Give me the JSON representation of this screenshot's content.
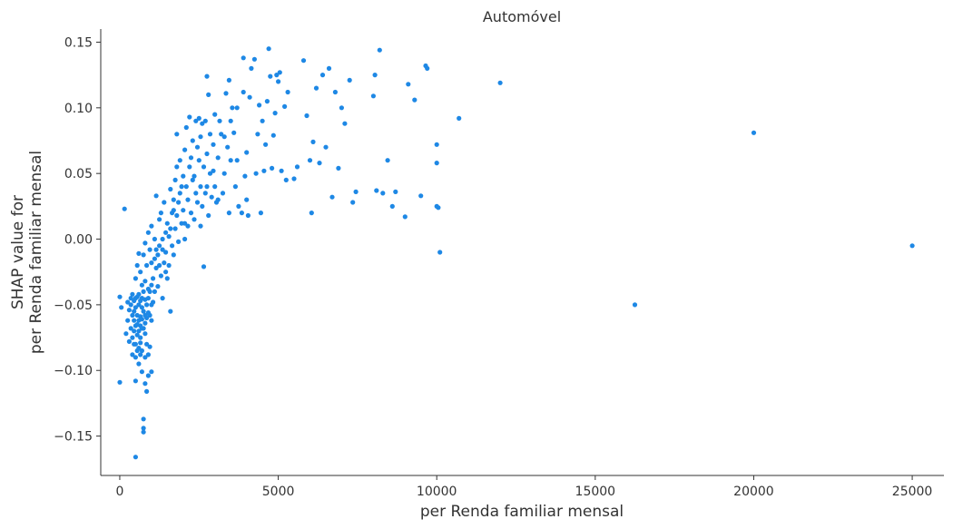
{
  "chart_data": {
    "type": "scatter",
    "title": "Automóvel",
    "xlabel": "per Renda familiar mensal",
    "ylabel_lines": [
      "SHAP value for",
      "per Renda familiar mensal"
    ],
    "xlim": [
      -600,
      26000
    ],
    "ylim": [
      -0.18,
      0.16
    ],
    "xticks": [
      0,
      5000,
      10000,
      15000,
      20000,
      25000
    ],
    "xtick_labels": [
      "0",
      "5000",
      "10000",
      "15000",
      "20000",
      "25000"
    ],
    "yticks": [
      -0.15,
      -0.1,
      -0.05,
      0.0,
      0.05,
      0.1,
      0.15
    ],
    "ytick_labels": [
      "−0.15",
      "−0.10",
      "−0.05",
      "0.00",
      "0.05",
      "0.10",
      "0.15"
    ],
    "grid": false,
    "point_color": "#1e88e5",
    "points": [
      [
        0,
        -0.044
      ],
      [
        0,
        -0.109
      ],
      [
        50,
        -0.052
      ],
      [
        150,
        0.023
      ],
      [
        200,
        -0.072
      ],
      [
        250,
        -0.048
      ],
      [
        250,
        -0.062
      ],
      [
        300,
        -0.078
      ],
      [
        300,
        -0.054
      ],
      [
        350,
        -0.045
      ],
      [
        350,
        -0.068
      ],
      [
        400,
        -0.058
      ],
      [
        400,
        -0.075
      ],
      [
        400,
        -0.088
      ],
      [
        450,
        -0.047
      ],
      [
        450,
        -0.062
      ],
      [
        450,
        -0.07
      ],
      [
        500,
        -0.166
      ],
      [
        500,
        -0.052
      ],
      [
        500,
        -0.066
      ],
      [
        500,
        -0.08
      ],
      [
        500,
        -0.09
      ],
      [
        500,
        -0.108
      ],
      [
        550,
        -0.044
      ],
      [
        550,
        -0.058
      ],
      [
        550,
        -0.073
      ],
      [
        550,
        -0.085
      ],
      [
        600,
        -0.05
      ],
      [
        600,
        -0.062
      ],
      [
        600,
        -0.07
      ],
      [
        600,
        -0.095
      ],
      [
        650,
        -0.047
      ],
      [
        650,
        -0.059
      ],
      [
        650,
        -0.066
      ],
      [
        650,
        -0.079
      ],
      [
        700,
        -0.052
      ],
      [
        700,
        -0.061
      ],
      [
        700,
        -0.085
      ],
      [
        700,
        -0.101
      ],
      [
        750,
        -0.137
      ],
      [
        750,
        -0.144
      ],
      [
        750,
        -0.147
      ],
      [
        750,
        -0.055
      ],
      [
        750,
        -0.068
      ],
      [
        800,
        -0.046
      ],
      [
        800,
        -0.058
      ],
      [
        800,
        -0.064
      ],
      [
        800,
        -0.09
      ],
      [
        800,
        -0.11
      ],
      [
        850,
        -0.116
      ],
      [
        850,
        -0.08
      ],
      [
        850,
        -0.05
      ],
      [
        900,
        -0.056
      ],
      [
        900,
        -0.045
      ],
      [
        900,
        -0.088
      ],
      [
        900,
        -0.104
      ],
      [
        950,
        -0.04
      ],
      [
        950,
        -0.082
      ],
      [
        1000,
        -0.05
      ],
      [
        1000,
        -0.062
      ],
      [
        1000,
        -0.101
      ],
      [
        500,
        -0.03
      ],
      [
        550,
        -0.02
      ],
      [
        600,
        -0.011
      ],
      [
        650,
        -0.025
      ],
      [
        700,
        -0.035
      ],
      [
        750,
        -0.012
      ],
      [
        800,
        -0.003
      ],
      [
        850,
        -0.02
      ],
      [
        900,
        0.005
      ],
      [
        950,
        -0.008
      ],
      [
        1000,
        -0.018
      ],
      [
        1000,
        0.01
      ],
      [
        1050,
        -0.03
      ],
      [
        1100,
        -0.04
      ],
      [
        1100,
        0.0
      ],
      [
        1100,
        -0.015
      ],
      [
        1150,
        0.033
      ],
      [
        1150,
        -0.022
      ],
      [
        1200,
        -0.012
      ],
      [
        1200,
        -0.036
      ],
      [
        1250,
        0.015
      ],
      [
        1250,
        -0.005
      ],
      [
        1300,
        -0.028
      ],
      [
        1300,
        0.02
      ],
      [
        1350,
        0.0
      ],
      [
        1350,
        -0.045
      ],
      [
        1400,
        -0.018
      ],
      [
        1400,
        0.028
      ],
      [
        1450,
        0.005
      ],
      [
        1450,
        -0.01
      ],
      [
        1500,
        -0.03
      ],
      [
        1500,
        0.012
      ],
      [
        1550,
        0.002
      ],
      [
        1550,
        -0.02
      ],
      [
        1600,
        0.038
      ],
      [
        1600,
        -0.055
      ],
      [
        1650,
        0.02
      ],
      [
        1650,
        -0.005
      ],
      [
        1700,
        0.03
      ],
      [
        1700,
        -0.012
      ],
      [
        1750,
        0.045
      ],
      [
        1750,
        0.008
      ],
      [
        1800,
        0.08
      ],
      [
        1800,
        0.018
      ],
      [
        1800,
        0.055
      ],
      [
        1850,
        -0.002
      ],
      [
        1900,
        0.035
      ],
      [
        1900,
        0.06
      ],
      [
        1950,
        0.012
      ],
      [
        2000,
        0.048
      ],
      [
        2000,
        0.022
      ],
      [
        2050,
        0.068
      ],
      [
        2050,
        0.0
      ],
      [
        2100,
        0.04
      ],
      [
        2100,
        0.085
      ],
      [
        2150,
        0.03
      ],
      [
        2150,
        0.01
      ],
      [
        2200,
        0.093
      ],
      [
        2200,
        0.055
      ],
      [
        2250,
        0.02
      ],
      [
        2300,
        0.075
      ],
      [
        2300,
        0.045
      ],
      [
        2350,
        0.015
      ],
      [
        2400,
        0.09
      ],
      [
        2400,
        0.035
      ],
      [
        2450,
        0.07
      ],
      [
        2450,
        0.028
      ],
      [
        2500,
        0.092
      ],
      [
        2500,
        0.06
      ],
      [
        2550,
        0.078
      ],
      [
        2550,
        0.04
      ],
      [
        2600,
        0.088
      ],
      [
        2600,
        0.025
      ],
      [
        2650,
        0.055
      ],
      [
        2650,
        -0.021
      ],
      [
        2700,
        0.09
      ],
      [
        2700,
        0.035
      ],
      [
        2750,
        0.124
      ],
      [
        2750,
        0.065
      ],
      [
        2800,
        0.11
      ],
      [
        2800,
        0.018
      ],
      [
        2850,
        0.08
      ],
      [
        2850,
        0.05
      ],
      [
        2900,
        0.032
      ],
      [
        2950,
        0.072
      ],
      [
        3000,
        0.095
      ],
      [
        3000,
        0.04
      ],
      [
        3050,
        0.028
      ],
      [
        3100,
        0.062
      ],
      [
        3150,
        0.09
      ],
      [
        3200,
        0.08
      ],
      [
        3250,
        0.035
      ],
      [
        3300,
        0.05
      ],
      [
        3350,
        0.111
      ],
      [
        3400,
        0.07
      ],
      [
        3450,
        0.121
      ],
      [
        3450,
        0.02
      ],
      [
        3500,
        0.09
      ],
      [
        3550,
        0.1
      ],
      [
        3600,
        0.081
      ],
      [
        3650,
        0.04
      ],
      [
        3700,
        0.06
      ],
      [
        3750,
        0.025
      ],
      [
        3900,
        0.138
      ],
      [
        3900,
        0.112
      ],
      [
        3950,
        0.048
      ],
      [
        4000,
        0.066
      ],
      [
        4050,
        0.018
      ],
      [
        4100,
        0.108
      ],
      [
        4150,
        0.13
      ],
      [
        4250,
        0.137
      ],
      [
        4300,
        0.05
      ],
      [
        4350,
        0.08
      ],
      [
        4400,
        0.102
      ],
      [
        4450,
        0.02
      ],
      [
        4500,
        0.09
      ],
      [
        4550,
        0.052
      ],
      [
        4600,
        0.072
      ],
      [
        4650,
        0.105
      ],
      [
        4700,
        0.145
      ],
      [
        4750,
        0.124
      ],
      [
        4800,
        0.054
      ],
      [
        4850,
        0.079
      ],
      [
        4900,
        0.096
      ],
      [
        4950,
        0.125
      ],
      [
        5000,
        0.12
      ],
      [
        5050,
        0.127
      ],
      [
        5100,
        0.052
      ],
      [
        5200,
        0.101
      ],
      [
        5250,
        0.045
      ],
      [
        5300,
        0.112
      ],
      [
        5500,
        0.046
      ],
      [
        5600,
        0.055
      ],
      [
        5800,
        0.136
      ],
      [
        5900,
        0.094
      ],
      [
        6000,
        0.06
      ],
      [
        6050,
        0.02
      ],
      [
        6100,
        0.074
      ],
      [
        6200,
        0.115
      ],
      [
        6300,
        0.058
      ],
      [
        6400,
        0.125
      ],
      [
        6500,
        0.07
      ],
      [
        6600,
        0.13
      ],
      [
        6700,
        0.032
      ],
      [
        6800,
        0.112
      ],
      [
        6900,
        0.054
      ],
      [
        7000,
        0.1
      ],
      [
        7100,
        0.088
      ],
      [
        7250,
        0.121
      ],
      [
        7350,
        0.028
      ],
      [
        7450,
        0.036
      ],
      [
        8000,
        0.109
      ],
      [
        8050,
        0.125
      ],
      [
        8100,
        0.037
      ],
      [
        8200,
        0.144
      ],
      [
        8300,
        0.035
      ],
      [
        8450,
        0.06
      ],
      [
        8600,
        0.025
      ],
      [
        8700,
        0.036
      ],
      [
        9000,
        0.017
      ],
      [
        9100,
        0.118
      ],
      [
        9300,
        0.106
      ],
      [
        9500,
        0.033
      ],
      [
        9650,
        0.132
      ],
      [
        9700,
        0.13
      ],
      [
        10000,
        0.072
      ],
      [
        10000,
        0.058
      ],
      [
        10000,
        0.025
      ],
      [
        10050,
        0.024
      ],
      [
        10100,
        -0.01
      ],
      [
        10700,
        0.092
      ],
      [
        12000,
        0.119
      ],
      [
        16250,
        -0.05
      ],
      [
        20000,
        0.081
      ],
      [
        25000,
        -0.005
      ],
      [
        350,
        -0.05
      ],
      [
        400,
        -0.042
      ],
      [
        450,
        -0.055
      ],
      [
        550,
        -0.065
      ],
      [
        600,
        -0.042
      ],
      [
        650,
        -0.075
      ],
      [
        700,
        -0.045
      ],
      [
        700,
        -0.068
      ],
      [
        750,
        -0.04
      ],
      [
        800,
        -0.072
      ],
      [
        850,
        -0.06
      ],
      [
        900,
        -0.038
      ],
      [
        950,
        -0.058
      ],
      [
        1000,
        -0.035
      ],
      [
        1050,
        -0.048
      ],
      [
        600,
        -0.083
      ],
      [
        650,
        -0.088
      ],
      [
        500,
        -0.045
      ],
      [
        450,
        -0.08
      ],
      [
        800,
        -0.032
      ],
      [
        1150,
        -0.008
      ],
      [
        1250,
        -0.02
      ],
      [
        1350,
        -0.008
      ],
      [
        1450,
        -0.025
      ],
      [
        1600,
        0.008
      ],
      [
        1700,
        0.022
      ],
      [
        1850,
        0.028
      ],
      [
        1950,
        0.04
      ],
      [
        2050,
        0.012
      ],
      [
        2250,
        0.062
      ],
      [
        2350,
        0.048
      ],
      [
        2550,
        0.01
      ],
      [
        2750,
        0.04
      ],
      [
        2950,
        0.052
      ],
      [
        3100,
        0.03
      ],
      [
        3300,
        0.078
      ],
      [
        3500,
        0.06
      ],
      [
        3700,
        0.1
      ],
      [
        3850,
        0.02
      ],
      [
        4000,
        0.03
      ]
    ]
  }
}
